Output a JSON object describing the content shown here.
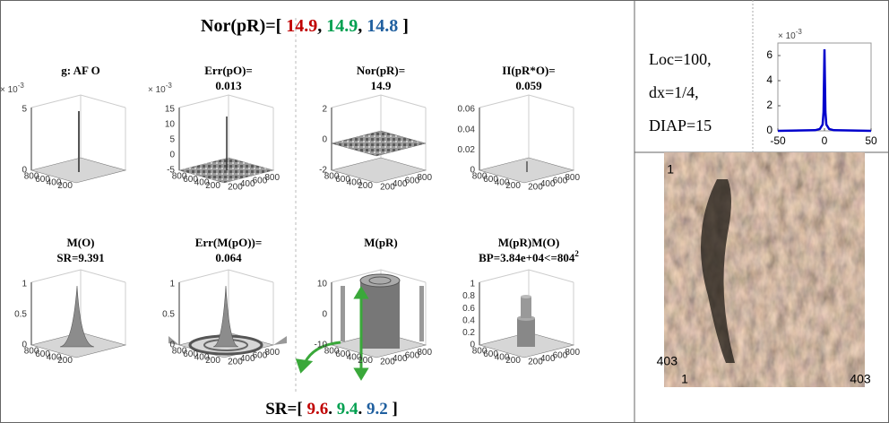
{
  "header": [
    {
      "text": "Nor(pR)=[ ",
      "color": "#000000"
    },
    {
      "text": "14.9",
      "color": "#c00000"
    },
    {
      "text": ", ",
      "color": "#000000"
    },
    {
      "text": "14.9",
      "color": "#00a050"
    },
    {
      "text": ", ",
      "color": "#000000"
    },
    {
      "text": "14.8",
      "color": "#1f5f9f"
    },
    {
      "text": " ]",
      "color": "#000000"
    }
  ],
  "footer": [
    {
      "text": "SR=[ ",
      "color": "#000000"
    },
    {
      "text": "9.6",
      "color": "#c00000"
    },
    {
      "text": ". ",
      "color": "#000000"
    },
    {
      "text": "9.4",
      "color": "#00a050"
    },
    {
      "text": ". ",
      "color": "#000000"
    },
    {
      "text": "9.2",
      "color": "#1f5f9f"
    },
    {
      "text": " ]",
      "color": "#000000"
    }
  ],
  "panels": [
    {
      "title": [
        "g: AF O"
      ],
      "exponent": {
        "base": "× 10",
        "power": "-3"
      },
      "zticks": [
        "5",
        "0"
      ],
      "left_ticks": [
        "800",
        "600",
        "400",
        "200"
      ],
      "right_ticks": []
    },
    {
      "title": [
        "Err(pO)=",
        "0.013"
      ],
      "exponent": {
        "base": "× 10",
        "power": "-3"
      },
      "zticks": [
        "15",
        "10",
        "5",
        "0",
        "-5"
      ],
      "left_ticks": [
        "800",
        "600",
        "400",
        "200"
      ],
      "right_ticks": [
        "200",
        "400",
        "600",
        "800"
      ]
    },
    {
      "title": [
        "Nor(pR)=",
        "14.9"
      ],
      "zticks": [
        "2",
        "0",
        "-2"
      ],
      "left_ticks": [
        "800",
        "600",
        "400",
        "200"
      ],
      "right_ticks": [
        "200",
        "400",
        "600",
        "800"
      ]
    },
    {
      "title": [
        "II(pR*O)=",
        "0.059"
      ],
      "zticks": [
        "0.06",
        "0.04",
        "0.02",
        "0"
      ],
      "left_ticks": [
        "800",
        "600",
        "400",
        "200"
      ],
      "right_ticks": [
        "200",
        "400",
        "600",
        "800"
      ]
    },
    {
      "title": [
        "M(O)",
        "SR=9.391"
      ],
      "zticks": [
        "1",
        "0.5",
        "0"
      ],
      "left_ticks": [
        "800",
        "600",
        "400",
        "200"
      ],
      "right_ticks": []
    },
    {
      "title": [
        "Err(M(pO))=",
        "0.064"
      ],
      "zticks": [
        "1",
        "0.5",
        "0"
      ],
      "left_ticks": [
        "800",
        "600",
        "400",
        "200"
      ],
      "right_ticks": [
        "200",
        "400",
        "600",
        "800"
      ]
    },
    {
      "title": [
        "M(pR)"
      ],
      "zticks": [
        "10",
        "0",
        "-10"
      ],
      "left_ticks": [
        "800",
        "600",
        "400",
        "200"
      ],
      "right_ticks": [
        "200",
        "400",
        "600",
        "800"
      ]
    },
    {
      "title": [
        "M(pR)M(O)",
        "BP=3.84e+04<=804"
      ],
      "title_sup": "2",
      "zticks": [
        "1",
        "0.8",
        "0.6",
        "0.4",
        "0.2",
        "0"
      ],
      "left_ticks": [
        "800",
        "600",
        "400",
        "200"
      ],
      "right_ticks": [
        "200",
        "400",
        "600",
        "800"
      ]
    }
  ],
  "params": [
    "Loc=100,",
    "dx=1/4,",
    "DIAP=15"
  ],
  "profile": {
    "exponent": {
      "base": "× 10",
      "power": "-3"
    },
    "xlim": [
      -50,
      50
    ],
    "ylim": [
      0,
      7
    ],
    "xticks": [
      -50,
      0,
      50
    ],
    "yticks": [
      0,
      2,
      4,
      6
    ],
    "color": "#0000cc",
    "x": [
      -50,
      -10,
      -5,
      -2,
      -1,
      0,
      1,
      2,
      5,
      10,
      50
    ],
    "values": [
      0,
      0.05,
      0.15,
      0.5,
      1.5,
      6.5,
      1.5,
      0.5,
      0.15,
      0.05,
      0
    ]
  },
  "image": {
    "y_labels": [
      "1",
      "403"
    ],
    "x_labels": [
      "1",
      "403"
    ]
  }
}
